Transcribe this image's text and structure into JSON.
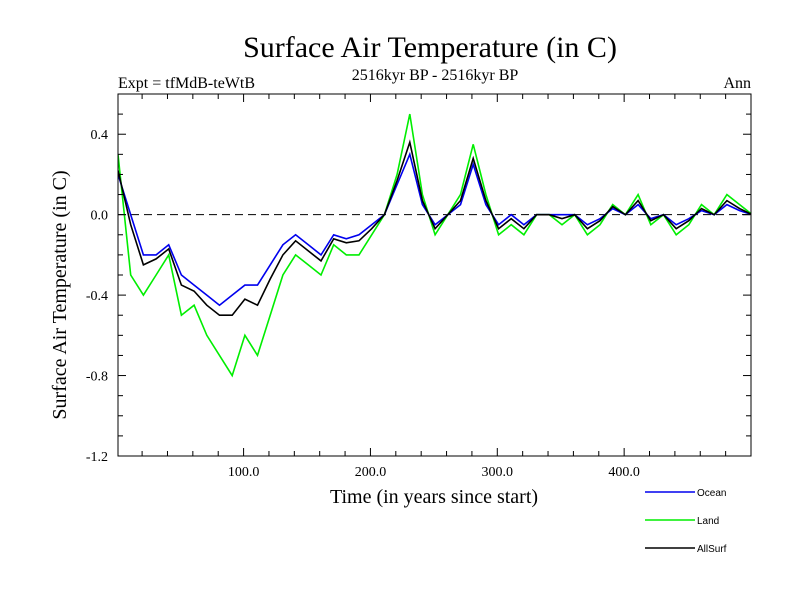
{
  "chart_data": {
    "type": "line",
    "title": "Surface Air Temperature (in C)",
    "subtitle": "2516kyr BP - 2516kyr BP",
    "experiment_label": "Expt = tfMdB-teWtB",
    "season_label": "Ann",
    "xlabel": "Time (in years since start)",
    "ylabel": "Surface Air Temperature (in C)",
    "xlim": [
      1,
      500
    ],
    "ylim": [
      -1.2,
      0.6
    ],
    "x_ticks": [
      100,
      200,
      300,
      400
    ],
    "x_tick_labels": [
      "100.0",
      "200.0",
      "300.0",
      "400.0"
    ],
    "y_ticks": [
      -1.2,
      -0.8,
      -0.4,
      0.0,
      0.4
    ],
    "y_tick_labels": [
      "-1.2",
      "-0.8",
      "-0.4",
      "0.0",
      "0.4"
    ],
    "zero_line": true,
    "x_step": 10,
    "series": [
      {
        "name": "Land",
        "color": "#00ee00",
        "x_start": 1,
        "values": [
          0.3,
          -0.3,
          -0.4,
          -0.3,
          -0.2,
          -0.5,
          -0.45,
          -0.6,
          -0.7,
          -0.8,
          -0.6,
          -0.7,
          -0.5,
          -0.3,
          -0.2,
          -0.25,
          -0.3,
          -0.15,
          -0.2,
          -0.2,
          -0.1,
          0.0,
          0.2,
          0.5,
          0.1,
          -0.1,
          0.0,
          0.1,
          0.35,
          0.1,
          -0.1,
          -0.05,
          -0.1,
          0.0,
          0.0,
          -0.05,
          0.0,
          -0.1,
          -0.05,
          0.05,
          0.0,
          0.1,
          -0.05,
          0.0,
          -0.1,
          -0.05,
          0.05,
          0.0,
          0.1,
          0.05,
          0.0
        ]
      },
      {
        "name": "Ocean",
        "color": "#0000ee",
        "x_start": 1,
        "values": [
          0.2,
          0.0,
          -0.2,
          -0.2,
          -0.15,
          -0.3,
          -0.35,
          -0.4,
          -0.45,
          -0.4,
          -0.35,
          -0.35,
          -0.25,
          -0.15,
          -0.1,
          -0.15,
          -0.2,
          -0.1,
          -0.12,
          -0.1,
          -0.05,
          0.0,
          0.15,
          0.3,
          0.05,
          -0.05,
          0.0,
          0.05,
          0.25,
          0.05,
          -0.05,
          0.0,
          -0.05,
          0.0,
          0.0,
          0.0,
          0.0,
          -0.05,
          -0.02,
          0.03,
          0.0,
          0.05,
          -0.02,
          0.0,
          -0.05,
          -0.02,
          0.02,
          0.0,
          0.05,
          0.02,
          0.0
        ]
      },
      {
        "name": "AllSurf",
        "color": "#000000",
        "x_start": 1,
        "values": [
          0.22,
          -0.05,
          -0.25,
          -0.22,
          -0.17,
          -0.35,
          -0.38,
          -0.45,
          -0.5,
          -0.5,
          -0.42,
          -0.45,
          -0.32,
          -0.2,
          -0.13,
          -0.18,
          -0.23,
          -0.12,
          -0.14,
          -0.13,
          -0.07,
          0.0,
          0.17,
          0.36,
          0.07,
          -0.07,
          0.0,
          0.07,
          0.28,
          0.07,
          -0.07,
          -0.02,
          -0.07,
          0.0,
          0.0,
          -0.02,
          0.0,
          -0.07,
          -0.03,
          0.04,
          0.0,
          0.07,
          -0.03,
          0.0,
          -0.07,
          -0.03,
          0.03,
          0.0,
          0.07,
          0.03,
          0.0
        ]
      }
    ],
    "legend": [
      "Ocean",
      "Land",
      "AllSurf"
    ],
    "legend_position": "bottom-right"
  }
}
